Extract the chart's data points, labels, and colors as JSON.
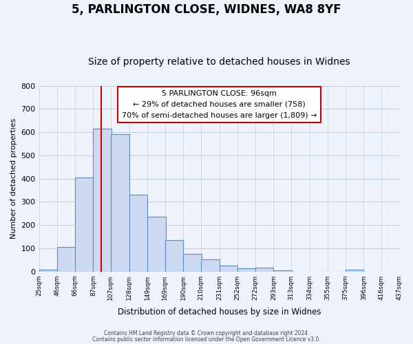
{
  "title1": "5, PARLINGTON CLOSE, WIDNES, WA8 8YF",
  "title2": "Size of property relative to detached houses in Widnes",
  "xlabel": "Distribution of detached houses by size in Widnes",
  "ylabel": "Number of detached properties",
  "bar_left_edges": [
    25,
    46,
    66,
    87,
    107,
    128,
    149,
    169,
    190,
    210,
    231,
    252,
    272,
    293,
    313,
    334,
    355,
    375,
    396,
    416
  ],
  "bar_heights": [
    8,
    107,
    405,
    615,
    590,
    332,
    237,
    135,
    77,
    51,
    26,
    15,
    17,
    5,
    0,
    0,
    0,
    8,
    0,
    0
  ],
  "bin_width": 21,
  "tick_labels": [
    "25sqm",
    "46sqm",
    "66sqm",
    "87sqm",
    "107sqm",
    "128sqm",
    "149sqm",
    "169sqm",
    "190sqm",
    "210sqm",
    "231sqm",
    "252sqm",
    "272sqm",
    "293sqm",
    "313sqm",
    "334sqm",
    "355sqm",
    "375sqm",
    "396sqm",
    "416sqm",
    "437sqm"
  ],
  "bar_color": "#ccd9f0",
  "bar_edge_color": "#5b8ac8",
  "property_line_x": 96,
  "property_line_color": "#cc0000",
  "ylim": [
    0,
    800
  ],
  "yticks": [
    0,
    100,
    200,
    300,
    400,
    500,
    600,
    700,
    800
  ],
  "annotation_line1": "5 PARLINGTON CLOSE: 96sqm",
  "annotation_line2": "← 29% of detached houses are smaller (758)",
  "annotation_line3": "70% of semi-detached houses are larger (1,809) →",
  "footer1": "Contains HM Land Registry data © Crown copyright and database right 2024.",
  "footer2": "Contains public sector information licensed under the Open Government Licence v3.0.",
  "bg_color": "#eef2fb",
  "grid_color": "#c0cce0",
  "title1_fontsize": 12,
  "title2_fontsize": 10
}
